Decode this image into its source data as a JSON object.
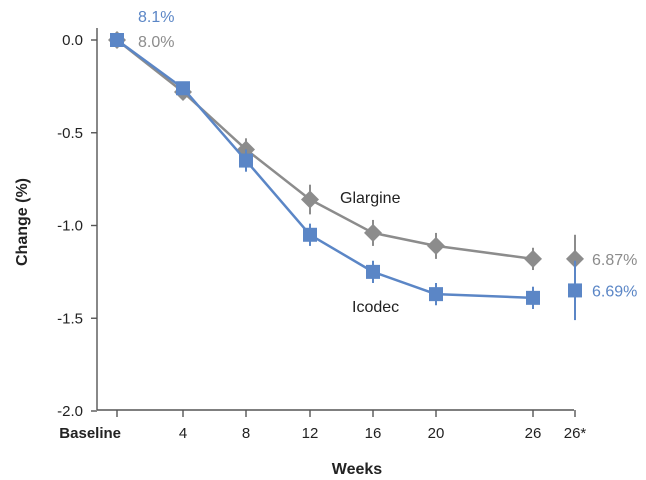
{
  "chart_data": {
    "type": "line",
    "xlabel": "Weeks",
    "ylabel": "Change (%)",
    "ylim": [
      -2.0,
      0.0
    ],
    "yticks": [
      "0.0",
      "-0.5",
      "-1.0",
      "-1.5",
      "-2.0"
    ],
    "ytick_values": [
      0.0,
      -0.5,
      -1.0,
      -1.5,
      -2.0
    ],
    "categories": [
      "Baseline",
      "4",
      "8",
      "12",
      "16",
      "20",
      "26",
      "26*"
    ],
    "x_values": [
      0,
      4,
      8,
      12,
      16,
      20,
      26
    ],
    "x_star_label": "26*",
    "series": [
      {
        "name": "Glargine",
        "color": "#8c8c8c",
        "marker": "diamond",
        "x": [
          0,
          4,
          8,
          12,
          16,
          20,
          26
        ],
        "values": [
          0.0,
          -0.28,
          -0.59,
          -0.86,
          -1.04,
          -1.11,
          -1.18
        ],
        "err": [
          0.0,
          0.03,
          0.06,
          0.08,
          0.07,
          0.07,
          0.06
        ],
        "star_value": -1.18,
        "star_err": [
          0.13,
          0.13
        ],
        "baseline_label": "8.0%",
        "end_label": "6.87%"
      },
      {
        "name": "Icodec",
        "color": "#5b86c6",
        "marker": "square",
        "x": [
          0,
          4,
          8,
          12,
          16,
          20,
          26
        ],
        "values": [
          0.0,
          -0.26,
          -0.65,
          -1.05,
          -1.25,
          -1.37,
          -1.39
        ],
        "err": [
          0.0,
          0.03,
          0.06,
          0.06,
          0.06,
          0.06,
          0.06
        ],
        "star_value": -1.35,
        "star_err": [
          0.16,
          0.16
        ],
        "baseline_label": "8.1%",
        "end_label": "6.69%"
      }
    ]
  }
}
